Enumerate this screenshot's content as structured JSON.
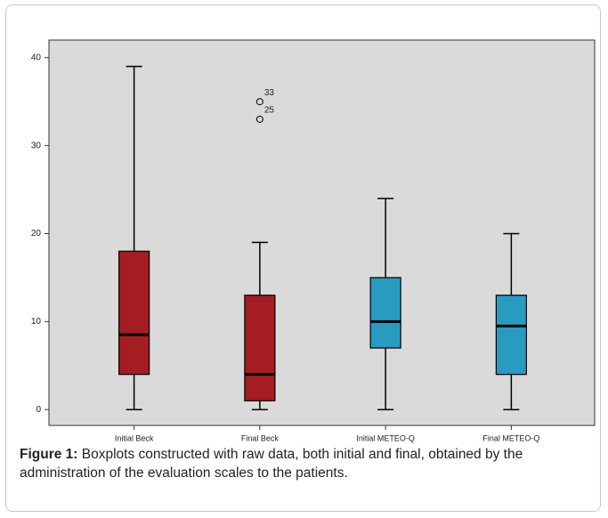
{
  "chart_data": {
    "type": "boxplot",
    "ylim": [
      -1.8,
      42
    ],
    "yticks": [
      0,
      10,
      20,
      30,
      40
    ],
    "boxes": [
      {
        "name": "Initial Beck",
        "color": "#a31d22",
        "whislo": 0,
        "q1": 4,
        "median": 8.5,
        "q3": 18,
        "whishi": 39,
        "outliers": []
      },
      {
        "name": "Final Beck",
        "color": "#a31d22",
        "whislo": 0,
        "q1": 1,
        "median": 4,
        "q3": 13,
        "whishi": 19,
        "outliers": [
          {
            "value": 35,
            "case": "33"
          },
          {
            "value": 33,
            "case": "25"
          }
        ]
      },
      {
        "name": "Initial METEO-Q",
        "color": "#2a9bc0",
        "whislo": 0,
        "q1": 7,
        "median": 10,
        "q3": 15,
        "whishi": 24,
        "outliers": []
      },
      {
        "name": "Final METEO-Q",
        "color": "#2a9bc0",
        "whislo": 0,
        "q1": 4,
        "median": 9.5,
        "q3": 13,
        "whishi": 20,
        "outliers": []
      }
    ]
  },
  "caption": {
    "label": "Figure 1:",
    "text": "Boxplots constructed with raw data, both initial and final, obtained by the administration of the evaluation scales to the patients."
  }
}
